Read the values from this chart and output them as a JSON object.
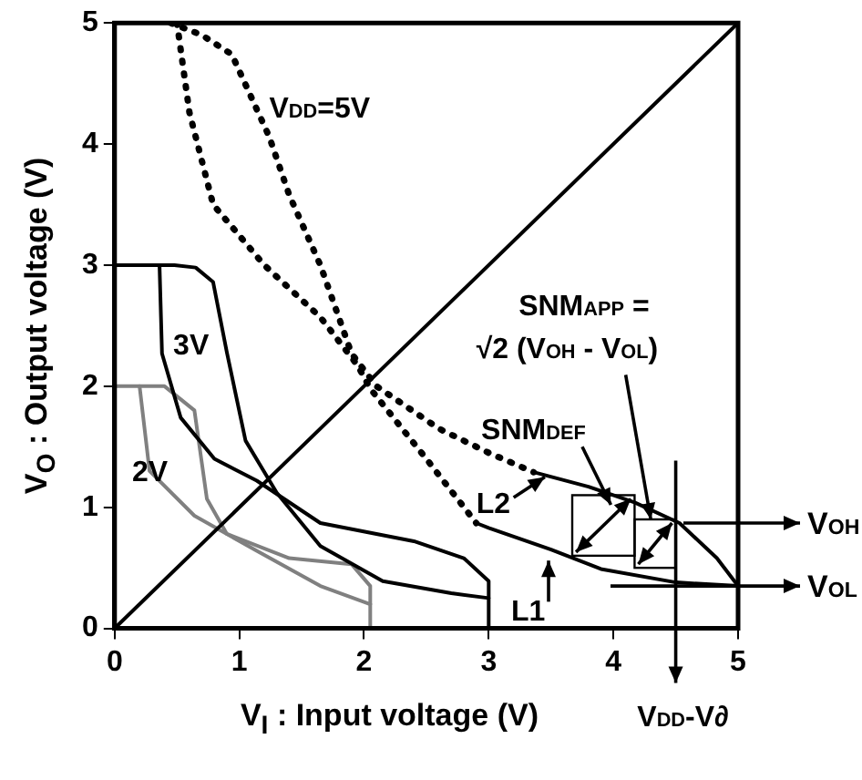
{
  "chart_data": {
    "type": "line",
    "xlabel": "V$_{I}$ : Input voltage (V)",
    "ylabel": "V$_{O}$ : Output voltage (V)",
    "xlim": [
      0,
      5
    ],
    "ylim": [
      0,
      5
    ],
    "xticks": [
      0,
      1,
      2,
      3,
      4,
      5
    ],
    "yticks": [
      0,
      1,
      2,
      3,
      4,
      5
    ],
    "grid": false,
    "legend": false,
    "marker": "none",
    "series": [
      {
        "color": "#000000",
        "line_style": "solid",
        "x": [
          0,
          5
        ],
        "values": [
          0,
          5
        ]
      },
      {
        "color": "#000000",
        "line_style": "dotted",
        "x": [
          0.5,
          0.6,
          0.79,
          1.2,
          1.65,
          1.95,
          2.05,
          2.5,
          2.9
        ],
        "values": [
          5,
          4.26,
          3.5,
          3.0,
          2.57,
          2.17,
          1.98,
          1.4,
          0.87
        ]
      },
      {
        "color": "#000000",
        "line_style": "solid",
        "x": [
          2.9,
          3.0,
          3.5,
          3.9,
          4.5,
          5
        ],
        "values": [
          0.87,
          0.83,
          0.65,
          0.49,
          0.38,
          0.35
        ]
      },
      {
        "color": "#000000",
        "line_style": "dotted",
        "x": [
          0.45,
          0.7,
          0.94,
          1.24,
          1.4,
          1.65,
          1.9,
          2.1,
          2.6,
          3.0,
          3.36
        ],
        "values": [
          5,
          4.9,
          4.74,
          4.06,
          3.58,
          3.0,
          2.27,
          2.0,
          1.65,
          1.45,
          1.29
        ]
      },
      {
        "color": "#000000",
        "line_style": "solid",
        "x": [
          3.36,
          3.8,
          4.17,
          4.53,
          4.83,
          5
        ],
        "values": [
          1.29,
          1.17,
          1.04,
          0.87,
          0.58,
          0.35
        ]
      },
      {
        "color": "#000000",
        "line_style": "solid",
        "x": [
          0,
          0.48,
          0.65,
          0.79,
          0.9,
          1.05,
          1.3,
          1.65,
          2.15,
          2.7,
          3.0
        ],
        "values": [
          3,
          3,
          2.98,
          2.86,
          2.28,
          1.55,
          1.12,
          0.68,
          0.39,
          0.29,
          0.25
        ]
      },
      {
        "color": "#000000",
        "line_style": "solid",
        "x": [
          0.36,
          0.38,
          0.53,
          0.8,
          1.14,
          1.65,
          2.4,
          2.8,
          3.0,
          3.0
        ],
        "values": [
          3,
          2.27,
          1.74,
          1.4,
          1.22,
          0.87,
          0.72,
          0.58,
          0.39,
          0
        ]
      },
      {
        "color": "#808080",
        "line_style": "solid",
        "x": [
          0,
          0.4,
          0.64,
          0.74,
          0.9,
          1.4,
          1.9,
          2.05,
          2.05
        ],
        "values": [
          2,
          2,
          1.8,
          1.07,
          0.78,
          0.58,
          0.53,
          0.35,
          0
        ]
      },
      {
        "color": "#808080",
        "line_style": "solid",
        "x": [
          0.2,
          0.28,
          0.64,
          1.14,
          1.65,
          2.05
        ],
        "values": [
          2,
          1.3,
          0.93,
          0.64,
          0.35,
          0.2
        ]
      }
    ],
    "annotations": [
      "V$_{DD}$=5V",
      "3V",
      "2V",
      "SNM$_{APP}$ =",
      {
        "text": "√2 (V$_{OH}$ - V$_{OL}$)",
        "x": 4.3,
        "y": 0.9
      },
      "SNM$_{DEF}$",
      "L2",
      "L1",
      "V$_{OH}$",
      "V$_{OL}$",
      "V$_{DD}$-V∂"
    ]
  }
}
